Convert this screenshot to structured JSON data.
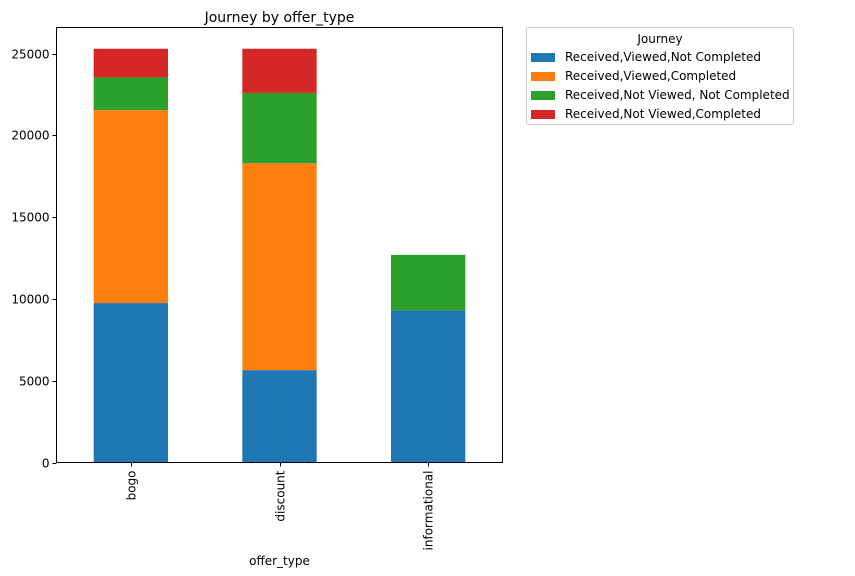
{
  "chart_data": {
    "type": "bar",
    "stacked": true,
    "title": "Journey by offer_type",
    "xlabel": "offer_type",
    "ylabel": "",
    "ylim": [
      0,
      26600
    ],
    "yticks": [
      0,
      5000,
      10000,
      15000,
      20000,
      25000
    ],
    "categories": [
      "bogo",
      "discount",
      "informational"
    ],
    "legend_title": "Journey",
    "legend_position": "outside-top-right",
    "series": [
      {
        "name": "Received,Viewed,Not Completed",
        "color": "#1f77b4",
        "values": [
          9750,
          5650,
          9300
        ]
      },
      {
        "name": "Received,Viewed,Completed",
        "color": "#ff7f0e",
        "values": [
          11800,
          12650,
          0
        ]
      },
      {
        "name": "Received,Not Viewed, Not Completed",
        "color": "#2ca02c",
        "values": [
          2000,
          4300,
          3400
        ]
      },
      {
        "name": "Received,Not Viewed,Completed",
        "color": "#d62728",
        "values": [
          1750,
          2700,
          0
        ]
      }
    ]
  }
}
